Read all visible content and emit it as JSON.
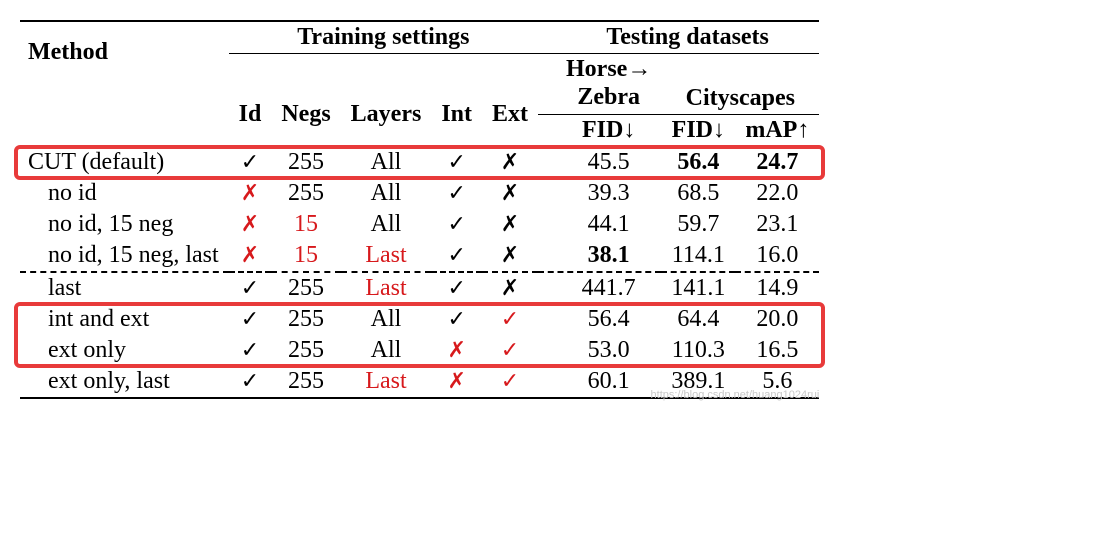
{
  "headers": {
    "method": "Method",
    "training": "Training settings",
    "testing": "Testing datasets",
    "id": "Id",
    "negs": "Negs",
    "layers": "Layers",
    "int": "Int",
    "ext": "Ext",
    "horse_zebra": "Horse→\nZebra",
    "horse": "Horse→",
    "zebra": "Zebra",
    "cityscapes": "Cityscapes",
    "fid": "FID↓",
    "map": "mAP↑"
  },
  "marks": {
    "check": "✓",
    "cross": "✗"
  },
  "colors": {
    "red": "#d7191c",
    "highlight_border": "#e83a3a",
    "black": "#000000",
    "bg": "#ffffff",
    "watermark": "#c8c8c8"
  },
  "rows": [
    {
      "method": "CUT (default)",
      "indent": false,
      "id_check": true,
      "id_red": false,
      "negs": "255",
      "negs_red": false,
      "layers": "All",
      "layers_red": false,
      "int_check": true,
      "int_red": false,
      "ext_check": false,
      "ext_red": false,
      "hz_fid": "45.5",
      "hz_bold": false,
      "cs_fid": "56.4",
      "cs_fid_bold": true,
      "cs_map": "24.7",
      "cs_map_bold": true
    },
    {
      "method": "no id",
      "indent": true,
      "id_check": false,
      "id_red": true,
      "negs": "255",
      "negs_red": false,
      "layers": "All",
      "layers_red": false,
      "int_check": true,
      "int_red": false,
      "ext_check": false,
      "ext_red": false,
      "hz_fid": "39.3",
      "hz_bold": false,
      "cs_fid": "68.5",
      "cs_fid_bold": false,
      "cs_map": "22.0",
      "cs_map_bold": false
    },
    {
      "method": "no id, 15 neg",
      "indent": true,
      "id_check": false,
      "id_red": true,
      "negs": "15",
      "negs_red": true,
      "layers": "All",
      "layers_red": false,
      "int_check": true,
      "int_red": false,
      "ext_check": false,
      "ext_red": false,
      "hz_fid": "44.1",
      "hz_bold": false,
      "cs_fid": "59.7",
      "cs_fid_bold": false,
      "cs_map": "23.1",
      "cs_map_bold": false
    },
    {
      "method": "no id, 15 neg, last",
      "indent": true,
      "id_check": false,
      "id_red": true,
      "negs": "15",
      "negs_red": true,
      "layers": "Last",
      "layers_red": true,
      "int_check": true,
      "int_red": false,
      "ext_check": false,
      "ext_red": false,
      "hz_fid": "38.1",
      "hz_bold": true,
      "cs_fid": "114.1",
      "cs_fid_bold": false,
      "cs_map": "16.0",
      "cs_map_bold": false
    },
    {
      "method": "last",
      "indent": true,
      "dashed_above": true,
      "id_check": true,
      "id_red": false,
      "negs": "255",
      "negs_red": false,
      "layers": "Last",
      "layers_red": true,
      "int_check": true,
      "int_red": false,
      "ext_check": false,
      "ext_red": false,
      "hz_fid": "441.7",
      "hz_bold": false,
      "cs_fid": "141.1",
      "cs_fid_bold": false,
      "cs_map": "14.9",
      "cs_map_bold": false
    },
    {
      "method": "int and ext",
      "indent": true,
      "id_check": true,
      "id_red": false,
      "negs": "255",
      "negs_red": false,
      "layers": "All",
      "layers_red": false,
      "int_check": true,
      "int_red": false,
      "ext_check": true,
      "ext_red": true,
      "hz_fid": "56.4",
      "hz_bold": false,
      "cs_fid": "64.4",
      "cs_fid_bold": false,
      "cs_map": "20.0",
      "cs_map_bold": false
    },
    {
      "method": "ext only",
      "indent": true,
      "id_check": true,
      "id_red": false,
      "negs": "255",
      "negs_red": false,
      "layers": "All",
      "layers_red": false,
      "int_check": false,
      "int_red": true,
      "ext_check": true,
      "ext_red": true,
      "hz_fid": "53.0",
      "hz_bold": false,
      "cs_fid": "110.3",
      "cs_fid_bold": false,
      "cs_map": "16.5",
      "cs_map_bold": false
    },
    {
      "method": "ext only, last",
      "indent": true,
      "id_check": true,
      "id_red": false,
      "negs": "255",
      "negs_red": false,
      "layers": "Last",
      "layers_red": true,
      "int_check": false,
      "int_red": true,
      "ext_check": true,
      "ext_red": true,
      "hz_fid": "60.1",
      "hz_bold": false,
      "cs_fid": "389.1",
      "cs_fid_bold": false,
      "cs_map": "5.6",
      "cs_map_bold": false
    }
  ],
  "highlights": [
    {
      "top_row_index": 0,
      "rows": 1
    },
    {
      "top_row_index": 5,
      "rows": 2
    }
  ],
  "watermark": "https://blog.csdn.net/huang1024rui"
}
